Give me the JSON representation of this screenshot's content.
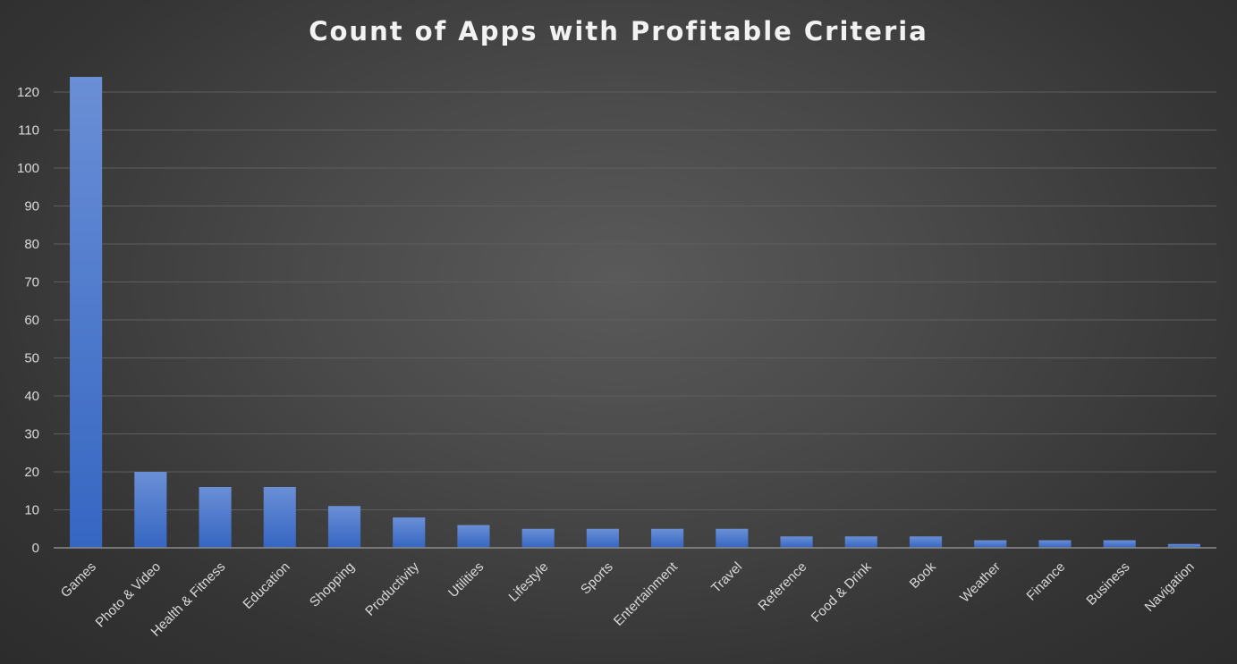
{
  "chart_data": {
    "type": "bar",
    "title": "Count of Apps with Profitable Criteria",
    "xlabel": "",
    "ylabel": "",
    "ylim": [
      0,
      120
    ],
    "yticks": [
      0,
      10,
      20,
      30,
      40,
      50,
      60,
      70,
      80,
      90,
      100,
      110,
      120
    ],
    "grid": true,
    "legend": "none",
    "categories": [
      "Games",
      "Photo & Video",
      "Health & Fitness",
      "Education",
      "Shopping",
      "Productivity",
      "Utilities",
      "Lifestyle",
      "Sports",
      "Entertainment",
      "Travel",
      "Reference",
      "Food & Drink",
      "Book",
      "Weather",
      "Finance",
      "Business",
      "Navigation"
    ],
    "values": [
      124,
      20,
      16,
      16,
      11,
      8,
      6,
      5,
      5,
      5,
      5,
      3,
      3,
      3,
      2,
      2,
      2,
      1
    ],
    "colors": {
      "bar_top": "#6a8fd6",
      "bar_bottom": "#3566c2",
      "grid": "#5e5e5e",
      "axis": "#8c8c8c",
      "text": "#d9d9d9"
    }
  }
}
